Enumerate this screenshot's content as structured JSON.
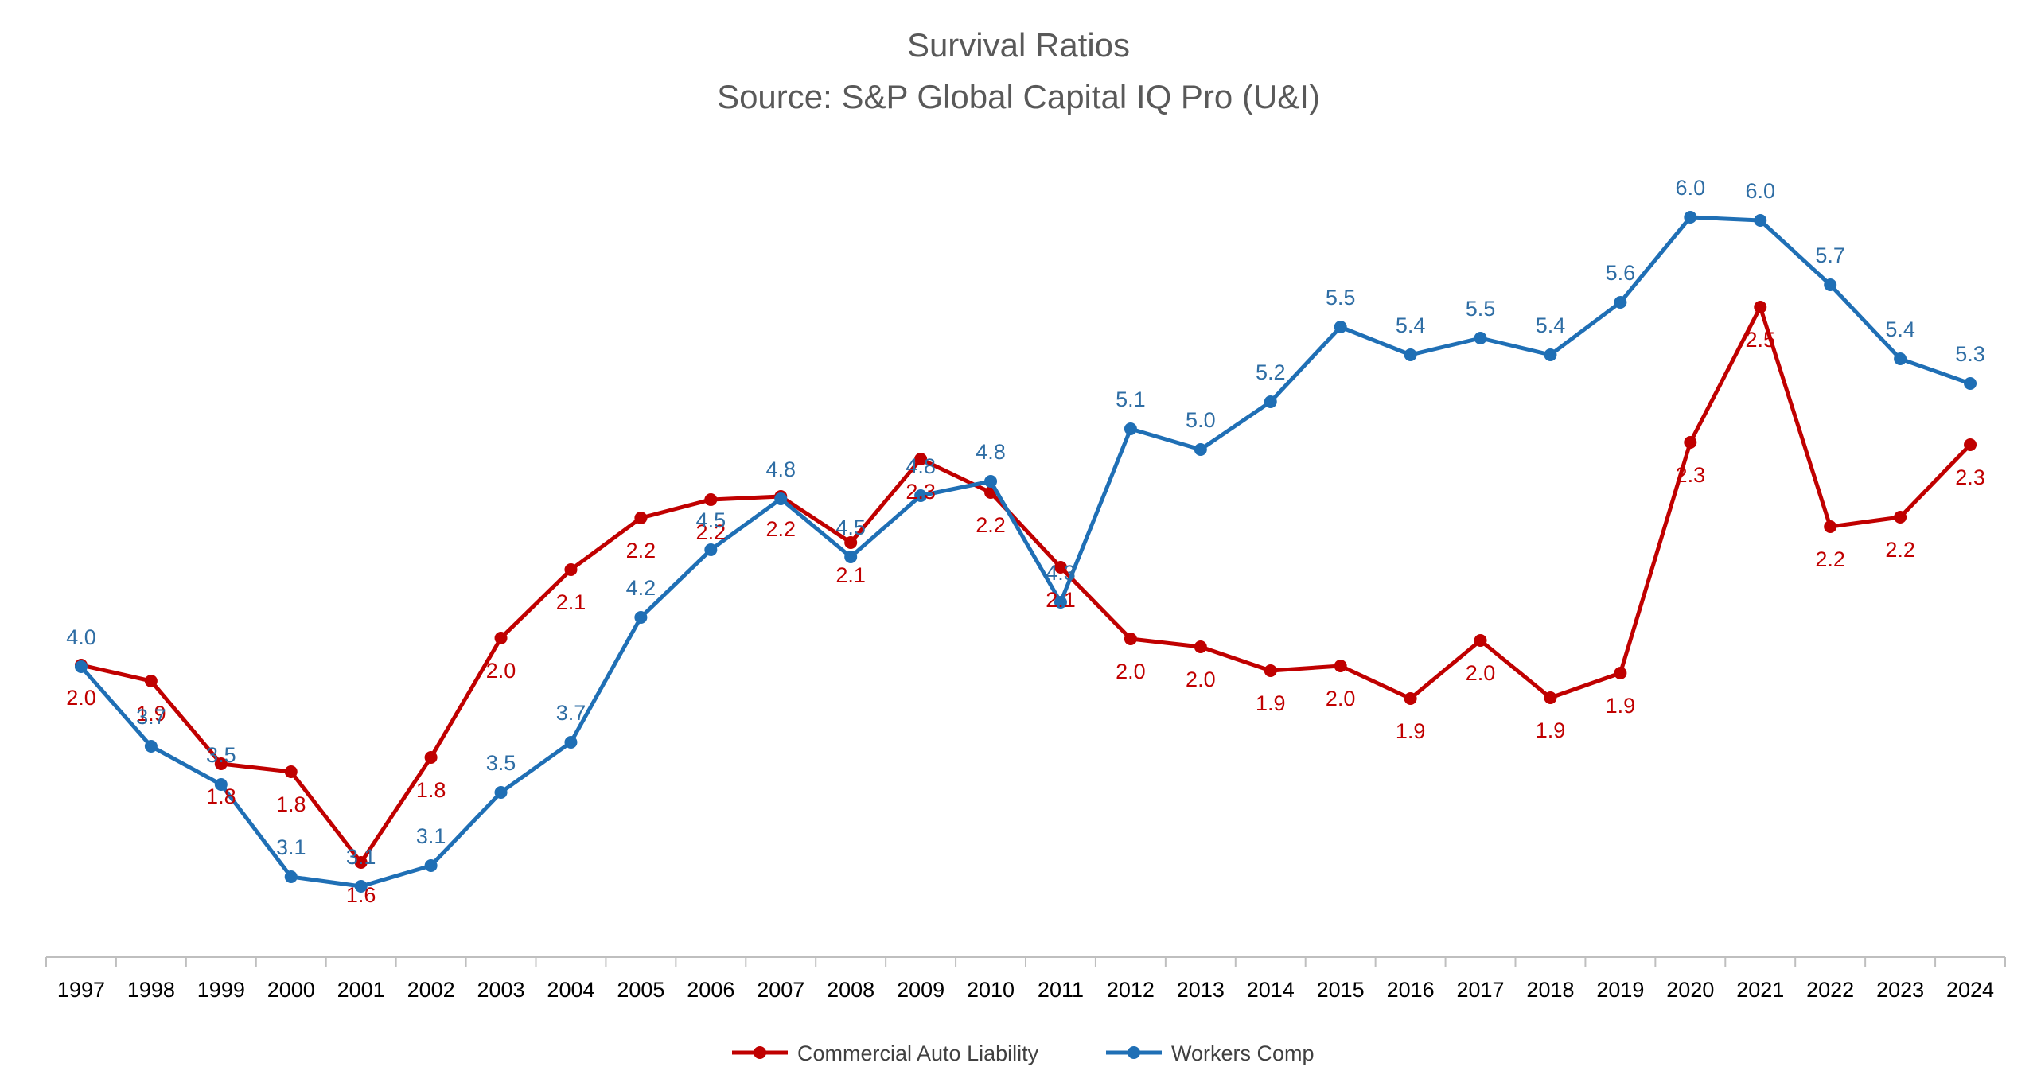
{
  "chart_data": {
    "type": "line",
    "title": "Survival Ratios",
    "subtitle": "Source: S&P Global Capital IQ Pro (U&I)",
    "categories": [
      "1997",
      "1998",
      "1999",
      "2000",
      "2001",
      "2002",
      "2003",
      "2004",
      "2005",
      "2006",
      "2007",
      "2008",
      "2009",
      "2010",
      "2011",
      "2012",
      "2013",
      "2014",
      "2015",
      "2016",
      "2017",
      "2018",
      "2019",
      "2020",
      "2021",
      "2022",
      "2023",
      "2024"
    ],
    "series": [
      {
        "name": "Commercial Auto Liability",
        "color": "#C00000",
        "values": [
          2.0,
          1.9,
          1.8,
          1.8,
          1.6,
          1.8,
          2.0,
          2.1,
          2.2,
          2.2,
          2.2,
          2.1,
          2.3,
          2.2,
          2.1,
          2.0,
          2.0,
          1.9,
          2.0,
          1.9,
          2.0,
          1.9,
          1.9,
          2.3,
          2.5,
          2.2,
          2.2,
          2.3
        ],
        "labels": [
          "2.0",
          "1.9",
          "1.8",
          "1.8",
          "1.6",
          "1.8",
          "2.0",
          "2.1",
          "2.2",
          "2.2",
          "2.2",
          "2.1",
          "2.3",
          "2.2",
          "2.1",
          "2.0",
          "2.0",
          "1.9",
          "2.0",
          "1.9",
          "2.0",
          "1.9",
          "1.9",
          "2.3",
          "2.5",
          "2.2",
          "2.2",
          "2.3"
        ]
      },
      {
        "name": "Workers Comp",
        "color": "#1F6FB5",
        "values": [
          4.0,
          3.7,
          3.5,
          3.1,
          3.1,
          3.1,
          3.5,
          3.7,
          4.2,
          4.5,
          4.8,
          4.5,
          4.8,
          4.8,
          4.3,
          5.1,
          5.0,
          5.2,
          5.5,
          5.4,
          5.5,
          5.4,
          5.6,
          6.0,
          6.0,
          5.7,
          5.4,
          5.3
        ],
        "labels": [
          "4.0",
          "3.7",
          "3.5",
          "3.1",
          "3.1",
          "3.1",
          "3.5",
          "3.7",
          "4.2",
          "4.5",
          "4.8",
          "4.5",
          "4.8",
          "4.8",
          "4.3",
          "5.1",
          "5.0",
          "5.2",
          "5.5",
          "5.4",
          "5.5",
          "5.4",
          "5.6",
          "6.0",
          "6.0",
          "5.7",
          "5.4",
          "5.3"
        ]
      }
    ],
    "legend": "bottom-center",
    "grid": false
  }
}
